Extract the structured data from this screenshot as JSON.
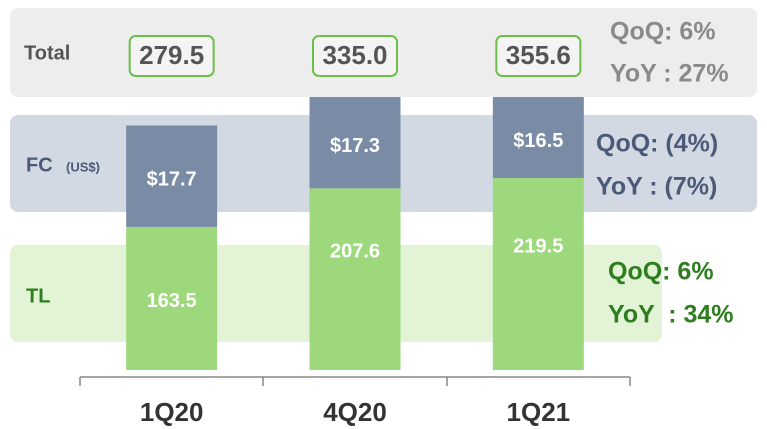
{
  "chart_data": {
    "type": "stacked_bar",
    "categories": [
      "1Q20",
      "4Q20",
      "1Q21"
    ],
    "series": [
      {
        "name": "TL",
        "color": "#9dd97c",
        "values": [
          163.5,
          207.6,
          219.5
        ]
      },
      {
        "name": "FC",
        "unit": "(US$)",
        "color": "#7a8ca5",
        "values": [
          17.7,
          17.3,
          16.5
        ],
        "value_labels": [
          "$17.7",
          "$17.3",
          "$16.5"
        ]
      }
    ],
    "totals": {
      "name": "Total",
      "values": [
        279.5,
        335.0,
        355.6
      ],
      "value_labels": [
        "279.5",
        "335.0",
        "355.6"
      ]
    },
    "ylim": [
      0,
      400
    ],
    "notes": {
      "Total": [
        "QoQ: 6%",
        "YoY : 27%"
      ],
      "FC": [
        "QoQ: (4%)",
        "YoY : (7%)"
      ],
      "TL": [
        "QoQ: 6%",
        "YoY  : 34%"
      ]
    }
  }
}
